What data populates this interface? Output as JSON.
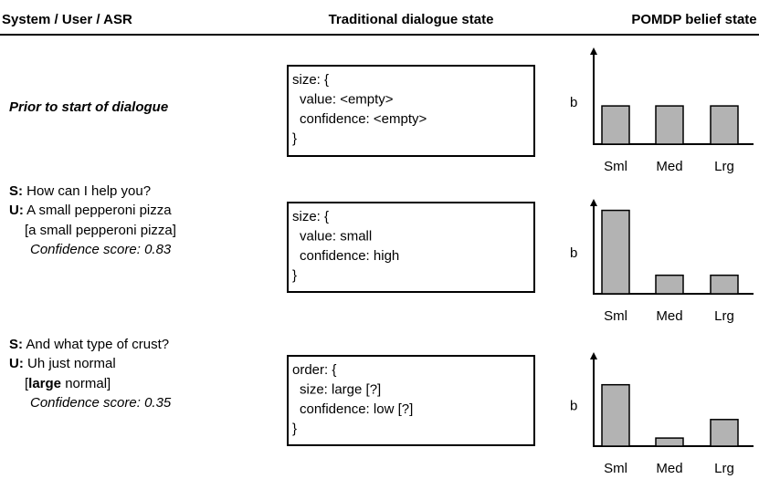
{
  "header": {
    "col1": "System / User / ASR",
    "col2": "Traditional dialogue state",
    "col3": "POMDP belief state"
  },
  "rows": [
    {
      "label": "Prior to start of dialogue",
      "state": [
        "size: {",
        "value: <empty>",
        "confidence: <empty>",
        "}"
      ],
      "belief": {
        "type": "bar",
        "axis_label": "b",
        "categories": [
          "Sml",
          "Med",
          "Lrg"
        ],
        "values": [
          0.33,
          0.33,
          0.33
        ],
        "ylim": [
          0,
          1
        ],
        "color": "#b3b3b3"
      }
    },
    {
      "system": {
        "speaker": "S:",
        "text": "How can I help you?"
      },
      "user": {
        "speaker": "U:",
        "text": "A small pepperoni pizza"
      },
      "asr": [
        "[a small pepperoni pizza]"
      ],
      "confidence": "Confidence score: 0.83",
      "state": [
        "size: {",
        "value: small",
        "confidence: high",
        "}"
      ],
      "belief": {
        "type": "bar",
        "axis_label": "b",
        "categories": [
          "Sml",
          "Med",
          "Lrg"
        ],
        "values": [
          0.72,
          0.16,
          0.16
        ],
        "ylim": [
          0,
          1
        ],
        "color": "#b3b3b3"
      }
    },
    {
      "system": {
        "speaker": "S:",
        "text": "And what type of crust?"
      },
      "user": {
        "speaker": "U:",
        "text": "Uh just normal"
      },
      "asr": [
        "[",
        "large",
        " normal]"
      ],
      "confidence": "Confidence score: 0.35",
      "state": [
        "order: {",
        "size: large [?]",
        "confidence: low [?]",
        "}"
      ],
      "belief": {
        "type": "bar",
        "axis_label": "b",
        "categories": [
          "Sml",
          "Med",
          "Lrg"
        ],
        "values": [
          0.53,
          0.07,
          0.23
        ],
        "ylim": [
          0,
          1
        ],
        "color": "#b3b3b3"
      }
    }
  ]
}
